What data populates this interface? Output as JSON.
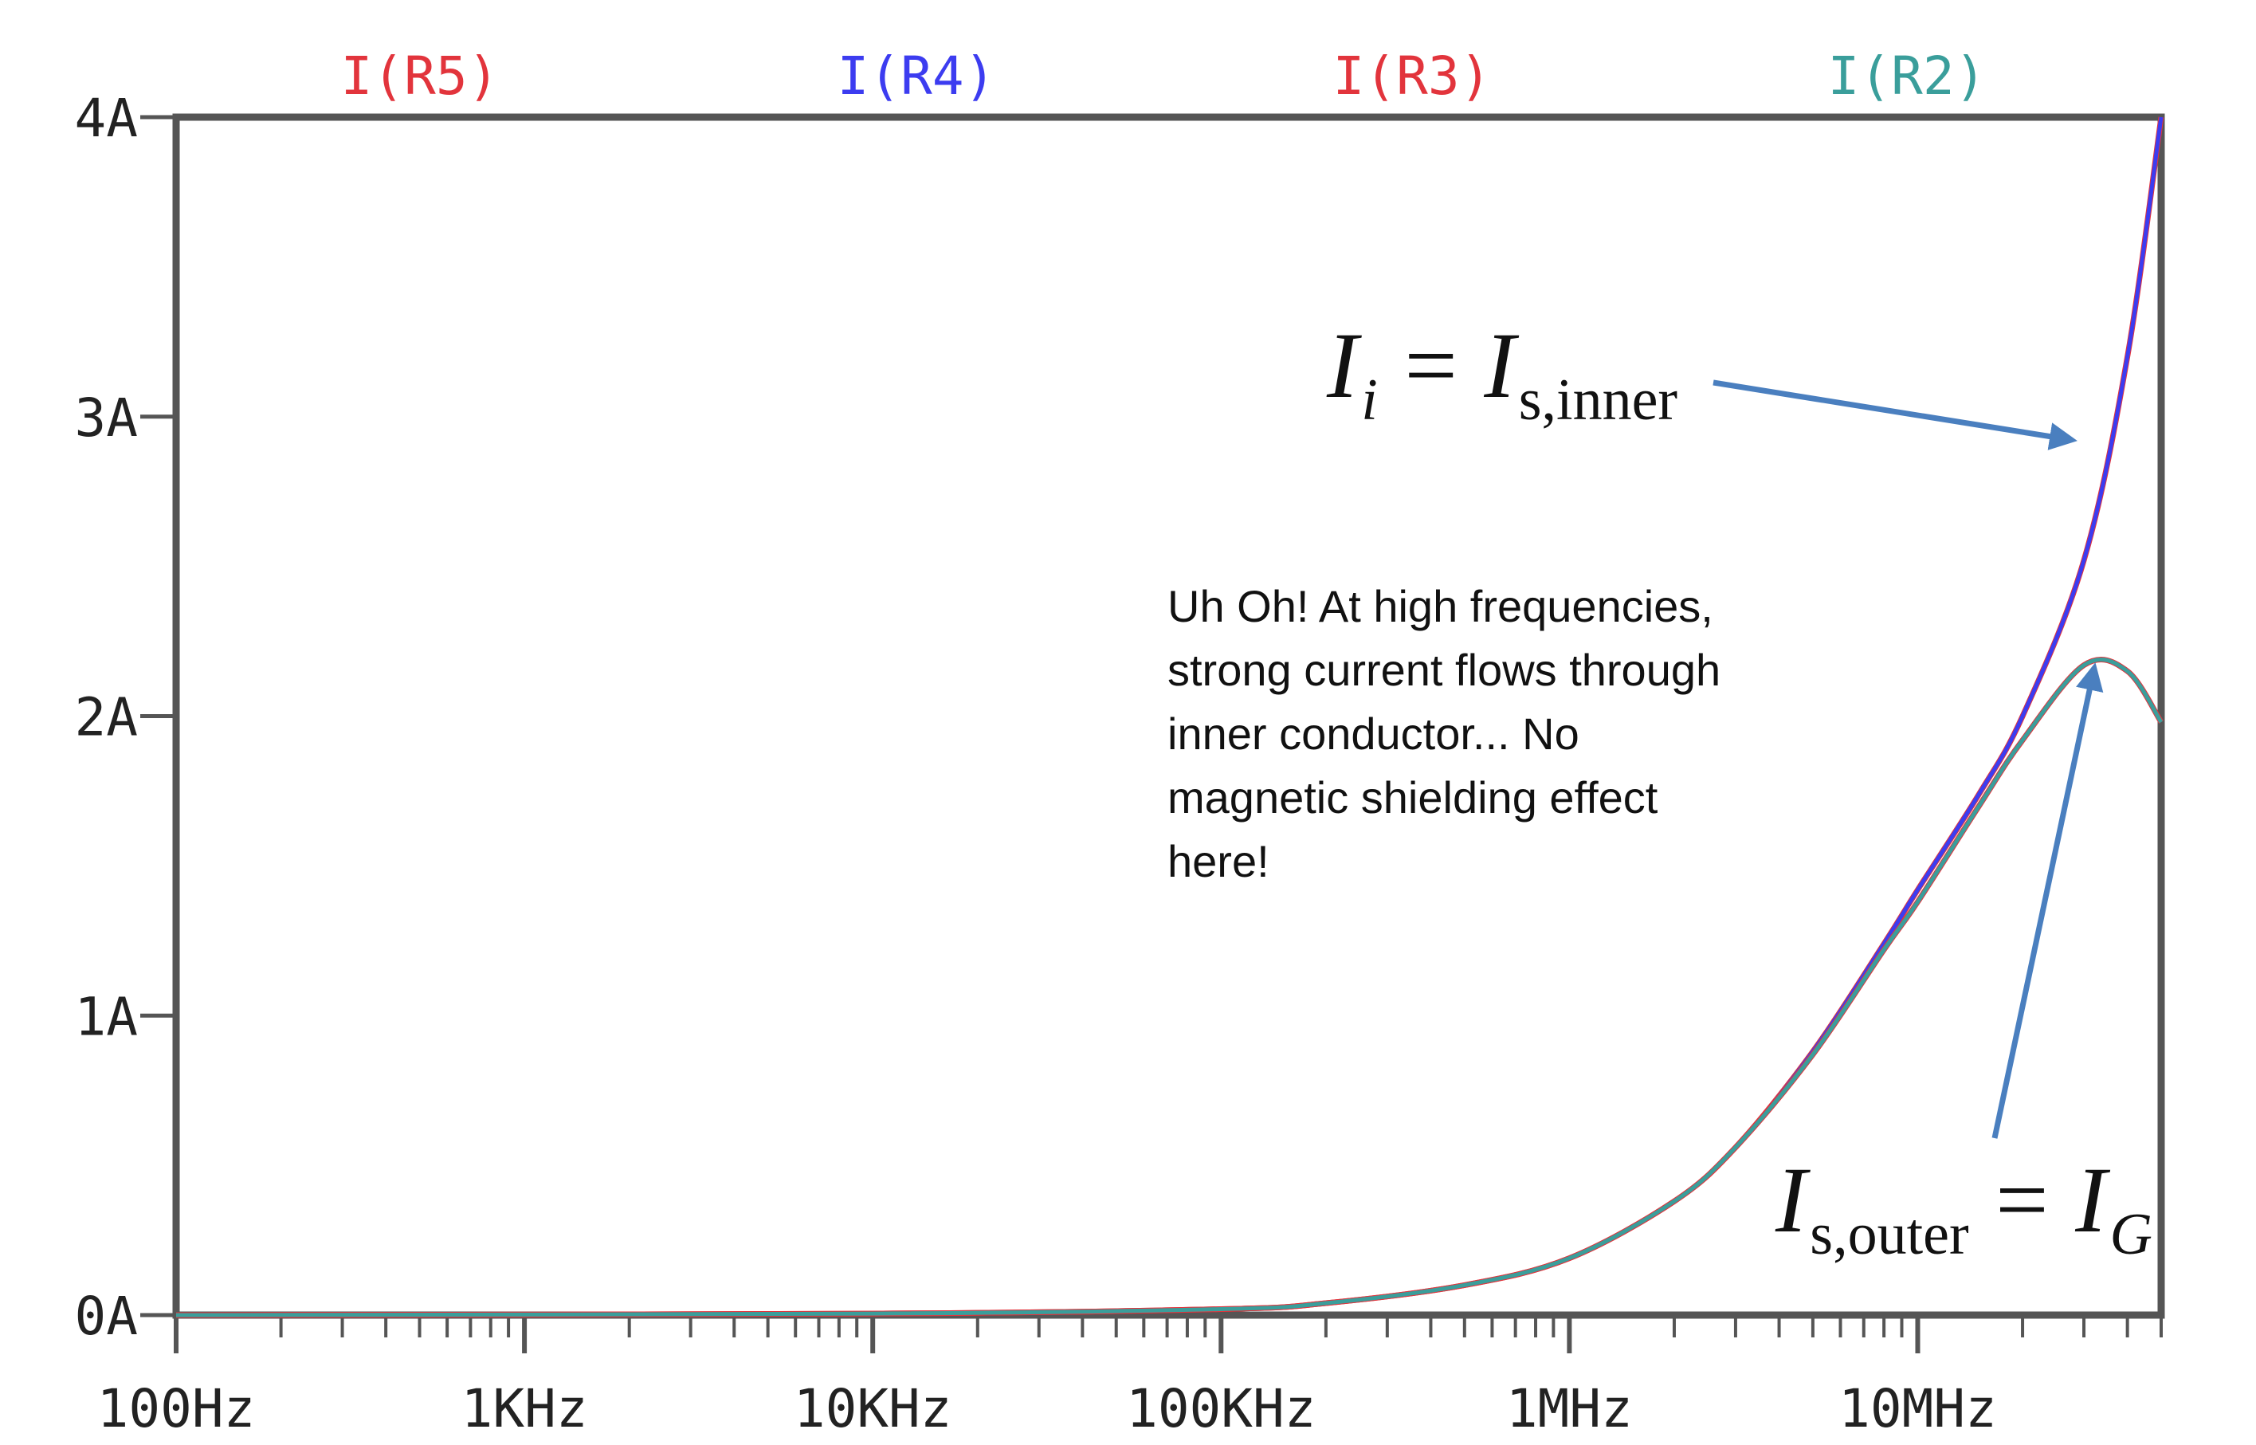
{
  "chart_data": {
    "type": "line",
    "x_scale": "log",
    "xlim": [
      "100Hz",
      "50MHz"
    ],
    "ylim": [
      0,
      4
    ],
    "y_unit": "A",
    "grid": false,
    "legend_placement": "top",
    "x_ticks": [
      {
        "value": 100,
        "label": "100Hz"
      },
      {
        "value": 1000,
        "label": "1KHz"
      },
      {
        "value": 10000,
        "label": "10KHz"
      },
      {
        "value": 100000,
        "label": "100KHz"
      },
      {
        "value": 1000000,
        "label": "1MHz"
      },
      {
        "value": 10000000,
        "label": "10MHz"
      }
    ],
    "y_ticks": [
      {
        "value": 0,
        "label": "0A"
      },
      {
        "value": 1,
        "label": "1A"
      },
      {
        "value": 2,
        "label": "2A"
      },
      {
        "value": 3,
        "label": "3A"
      },
      {
        "value": 4,
        "label": "4A"
      }
    ],
    "series": [
      {
        "name": "I(R5)",
        "color": "#e2343c",
        "x": [
          100,
          10000,
          100000,
          200000,
          500000,
          1000000,
          2000000,
          3000000,
          5000000,
          8000000,
          10000000,
          15000000,
          20000000,
          30000000,
          40000000,
          50000000
        ],
        "y": [
          0,
          0.005,
          0.02,
          0.04,
          0.1,
          0.19,
          0.38,
          0.56,
          0.88,
          1.24,
          1.42,
          1.74,
          2.0,
          2.52,
          3.2,
          4.0
        ]
      },
      {
        "name": "I(R4)",
        "color": "#3c3cf0",
        "x": [
          100,
          10000,
          100000,
          200000,
          500000,
          1000000,
          2000000,
          3000000,
          5000000,
          8000000,
          10000000,
          15000000,
          20000000,
          30000000,
          40000000,
          50000000
        ],
        "y": [
          0,
          0.005,
          0.02,
          0.04,
          0.1,
          0.19,
          0.38,
          0.56,
          0.88,
          1.24,
          1.42,
          1.74,
          2.0,
          2.52,
          3.2,
          4.0
        ]
      },
      {
        "name": "I(R3)",
        "color": "#e2343c",
        "x": [
          100,
          10000,
          100000,
          200000,
          500000,
          1000000,
          2000000,
          3000000,
          5000000,
          8000000,
          10000000,
          15000000,
          20000000,
          30000000,
          40000000,
          50000000
        ],
        "y": [
          0,
          0.005,
          0.02,
          0.04,
          0.1,
          0.19,
          0.38,
          0.56,
          0.87,
          1.22,
          1.38,
          1.7,
          1.92,
          2.17,
          2.15,
          1.98
        ]
      },
      {
        "name": "I(R2)",
        "color": "#3a9e9b",
        "x": [
          100,
          10000,
          100000,
          200000,
          500000,
          1000000,
          2000000,
          3000000,
          5000000,
          8000000,
          10000000,
          15000000,
          20000000,
          30000000,
          40000000,
          50000000
        ],
        "y": [
          0,
          0.005,
          0.02,
          0.04,
          0.1,
          0.19,
          0.38,
          0.56,
          0.87,
          1.22,
          1.38,
          1.7,
          1.92,
          2.17,
          2.15,
          1.98
        ]
      }
    ],
    "annotations": {
      "inner_label": {
        "main": "I",
        "sub1": "i",
        "eq": " = ",
        "main2": "I",
        "sub2": "s,inner"
      },
      "outer_label": {
        "main": "I",
        "sub1": "s,outer",
        "eq": " = ",
        "main2": "I",
        "sub2": "G"
      },
      "note": [
        "Uh Oh! At high frequencies,",
        "strong current flows through",
        "inner conductor... No",
        "magnetic shielding effect",
        "here!"
      ],
      "arrow_color": "#4a7fbf"
    }
  }
}
